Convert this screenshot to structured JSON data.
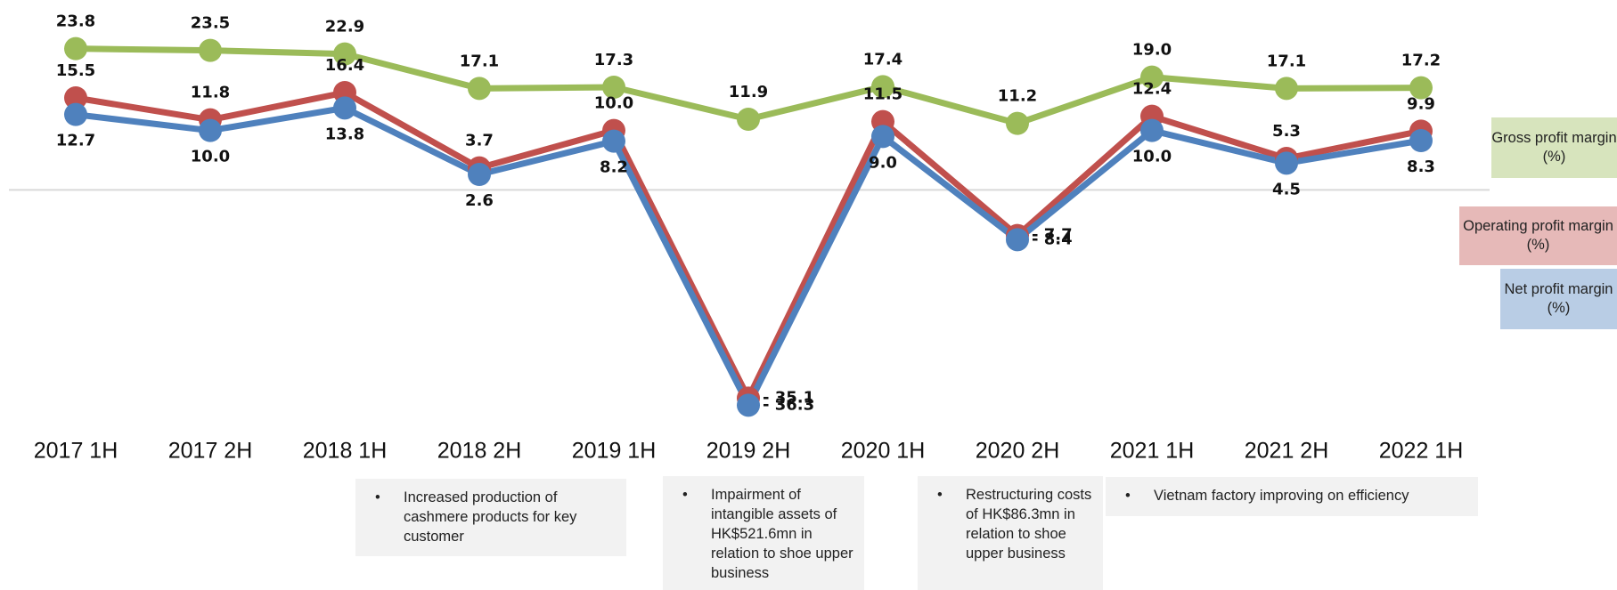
{
  "chart_data": {
    "type": "line",
    "categories": [
      "2017 1H",
      "2017 2H",
      "2018 1H",
      "2018 2H",
      "2019 1H",
      "2019 2H",
      "2020 1H",
      "2020 2H",
      "2021 1H",
      "2021 2H",
      "2022 1H"
    ],
    "series": [
      {
        "name": "Gross profit margin (%)",
        "color": "#9bbb59",
        "values": [
          23.8,
          23.5,
          22.9,
          17.1,
          17.3,
          11.9,
          17.4,
          11.2,
          19.0,
          17.1,
          17.2
        ],
        "value_labels": [
          "23.8",
          "23.5",
          "22.9",
          "17.1",
          "17.3",
          "11.9",
          "17.4",
          "11.2",
          "19.0",
          "17.1",
          "17.2"
        ]
      },
      {
        "name": "Operating profit margin (%)",
        "color": "#c0504d",
        "values": [
          15.5,
          11.8,
          16.4,
          3.7,
          10.0,
          -35.1,
          11.5,
          -7.7,
          12.4,
          5.3,
          9.9
        ],
        "value_labels": [
          "15.5",
          "11.8",
          "16.4",
          "3.7",
          "10.0",
          "- 35.1",
          "11.5",
          "- 7.7",
          "12.4",
          "5.3",
          "9.9"
        ]
      },
      {
        "name": "Net profit margin (%)",
        "color": "#4f81bd",
        "values": [
          12.7,
          10.0,
          13.8,
          2.6,
          8.2,
          -36.3,
          9.0,
          -8.4,
          10.0,
          4.5,
          8.3
        ],
        "value_labels": [
          "12.7",
          "10.0",
          "13.8",
          "2.6",
          "8.2",
          "- 36.3",
          "9.0",
          "- 8.4",
          "10.0",
          "4.5",
          "8.3"
        ]
      }
    ],
    "ylim": [
      -40,
      26
    ],
    "notes": [
      {
        "text": "Increased production of cashmere products for key customer"
      },
      {
        "text": "Impairment of intangible assets of HK$521.6mn in relation to shoe upper business"
      },
      {
        "text": "Restructuring costs of HK$86.3mn in relation to shoe upper business"
      },
      {
        "text": "Vietnam factory improving on efficiency"
      }
    ]
  }
}
